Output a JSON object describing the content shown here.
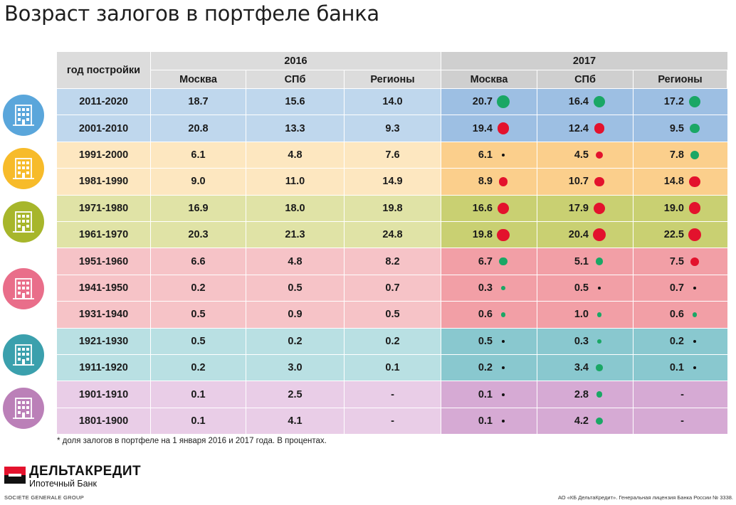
{
  "title": "Возраст залогов в портфеле банка",
  "chart_data": {
    "type": "table",
    "row_header": "год постройки",
    "years": [
      "2016",
      "2017"
    ],
    "regions": [
      "Москва",
      "СПб",
      "Регионы"
    ],
    "rows": [
      {
        "period": "2011-2020",
        "group": "blue",
        "v2016": [
          "18.7",
          "15.6",
          "14.0"
        ],
        "v2017": [
          "20.7",
          "16.4",
          "17.2"
        ],
        "trend": [
          "green",
          "green",
          "green"
        ]
      },
      {
        "period": "2001-2010",
        "group": "blue",
        "v2016": [
          "20.8",
          "13.3",
          "9.3"
        ],
        "v2017": [
          "19.4",
          "12.4",
          "9.5"
        ],
        "trend": [
          "red",
          "red",
          "green"
        ]
      },
      {
        "period": "1991-2000",
        "group": "orange",
        "v2016": [
          "6.1",
          "4.8",
          "7.6"
        ],
        "v2017": [
          "6.1",
          "4.5",
          "7.8"
        ],
        "trend": [
          "black",
          "red",
          "green"
        ]
      },
      {
        "period": "1981-1990",
        "group": "orange",
        "v2016": [
          "9.0",
          "11.0",
          "14.9"
        ],
        "v2017": [
          "8.9",
          "10.7",
          "14.8"
        ],
        "trend": [
          "red",
          "red",
          "red"
        ]
      },
      {
        "period": "1971-1980",
        "group": "green",
        "v2016": [
          "16.9",
          "18.0",
          "19.8"
        ],
        "v2017": [
          "16.6",
          "17.9",
          "19.0"
        ],
        "trend": [
          "red",
          "red",
          "red"
        ]
      },
      {
        "period": "1961-1970",
        "group": "green",
        "v2016": [
          "20.3",
          "21.3",
          "24.8"
        ],
        "v2017": [
          "19.8",
          "20.4",
          "22.5"
        ],
        "trend": [
          "red",
          "red",
          "red"
        ]
      },
      {
        "period": "1951-1960",
        "group": "pink",
        "v2016": [
          "6.6",
          "4.8",
          "8.2"
        ],
        "v2017": [
          "6.7",
          "5.1",
          "7.5"
        ],
        "trend": [
          "green",
          "green",
          "red"
        ]
      },
      {
        "period": "1941-1950",
        "group": "pink",
        "v2016": [
          "0.2",
          "0.5",
          "0.7"
        ],
        "v2017": [
          "0.3",
          "0.5",
          "0.7"
        ],
        "trend": [
          "green",
          "black",
          "black"
        ]
      },
      {
        "period": "1931-1940",
        "group": "pink",
        "v2016": [
          "0.5",
          "0.9",
          "0.5"
        ],
        "v2017": [
          "0.6",
          "1.0",
          "0.6"
        ],
        "trend": [
          "green",
          "green",
          "green"
        ]
      },
      {
        "period": "1921-1930",
        "group": "teal",
        "v2016": [
          "0.5",
          "0.2",
          "0.2"
        ],
        "v2017": [
          "0.5",
          "0.3",
          "0.2"
        ],
        "trend": [
          "black",
          "green",
          "black"
        ]
      },
      {
        "period": "1911-1920",
        "group": "teal",
        "v2016": [
          "0.2",
          "3.0",
          "0.1"
        ],
        "v2017": [
          "0.2",
          "3.4",
          "0.1"
        ],
        "trend": [
          "black",
          "green",
          "black"
        ]
      },
      {
        "period": "1901-1910",
        "group": "purple",
        "v2016": [
          "0.1",
          "2.5",
          "-"
        ],
        "v2017": [
          "0.1",
          "2.8",
          "-"
        ],
        "trend": [
          "black",
          "green",
          ""
        ]
      },
      {
        "period": "1801-1900",
        "group": "purple",
        "v2016": [
          "0.1",
          "4.1",
          "-"
        ],
        "v2017": [
          "0.1",
          "4.2",
          "-"
        ],
        "trend": [
          "black",
          "green",
          ""
        ]
      }
    ],
    "groups": {
      "blue": {
        "icon": "modern-building-icon",
        "icon_color": "#5aa6db",
        "light": "#bfd7ed",
        "dark": "#9dbfe3"
      },
      "orange": {
        "icon": "apartment-block-icon",
        "icon_color": "#f7bb2a",
        "light": "#fde7c0",
        "dark": "#fbcf8c"
      },
      "green": {
        "icon": "panel-building-icon",
        "icon_color": "#a7b62b",
        "light": "#e0e3a6",
        "dark": "#c9d072"
      },
      "pink": {
        "icon": "historic-building-icon",
        "icon_color": "#e96e8a",
        "light": "#f6c3c7",
        "dark": "#f29fa6"
      },
      "teal": {
        "icon": "old-house-icon",
        "icon_color": "#3ba0ad",
        "light": "#b9e0e3",
        "dark": "#89c8cf"
      },
      "purple": {
        "icon": "classical-building-icon",
        "icon_color": "#bb80b8",
        "light": "#e9cde7",
        "dark": "#d6aad4"
      }
    },
    "trend_colors": {
      "green": "#1aa765",
      "red": "#e3122d",
      "black": "#111111"
    }
  },
  "footnote": "* доля залогов в портфеле на 1 января 2016 и 2017 года. В процентах.",
  "logo": {
    "name": "ДЕЛЬТАКРЕДИТ",
    "subtitle": "Ипотечный Банк",
    "mark_color": "#e3122d"
  },
  "group_text": "SOCIETE GENERALE GROUP",
  "license": "АО «КБ ДельтаКредит». Генеральная лицензия Банка России № 3338."
}
